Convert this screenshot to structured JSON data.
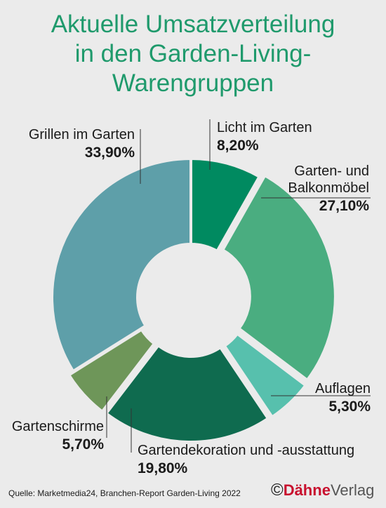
{
  "title_lines": [
    "Aktuelle Umsatzverteilung",
    "in den Garden-Living-",
    "Warengruppen"
  ],
  "chart_data": {
    "type": "pie",
    "donut": true,
    "title": "Aktuelle Umsatzverteilung in den Garden-Living-Warengruppen",
    "unit": "%",
    "categories": [
      "Licht im Garten",
      "Garten- und Balkonmöbel",
      "Auflagen",
      "Gartendekoration und -ausstattung",
      "Gartenschirme",
      "Grillen im Garten"
    ],
    "values": [
      8.2,
      27.1,
      5.3,
      19.8,
      5.7,
      33.9
    ],
    "value_labels": [
      "8,20%",
      "27,10%",
      "5,30%",
      "19,80%",
      "5,70%",
      "33,90%"
    ],
    "colors": [
      "#008a60",
      "#4aad80",
      "#57c0ad",
      "#0f6b4f",
      "#6e9659",
      "#5e9fa9"
    ]
  },
  "labels": {
    "licht": {
      "name": "Licht im Garten",
      "value": "8,20%"
    },
    "moebel": {
      "name_line1": "Garten- und",
      "name_line2": "Balkonmöbel",
      "value": "27,10%"
    },
    "auflagen": {
      "name": "Auflagen",
      "value": "5,30%"
    },
    "deko": {
      "name": "Gartendekoration und -ausstattung",
      "value": "19,80%"
    },
    "schirme": {
      "name": "Gartenschirme",
      "value": "5,70%"
    },
    "grillen": {
      "name": "Grillen im Garten",
      "value": "33,90%"
    }
  },
  "source": "Quelle: Marketmedia24, Branchen-Report Garden-Living 2022",
  "logo": {
    "copyright": "©",
    "brand": "Dähne",
    "suffix": "Verlag"
  }
}
